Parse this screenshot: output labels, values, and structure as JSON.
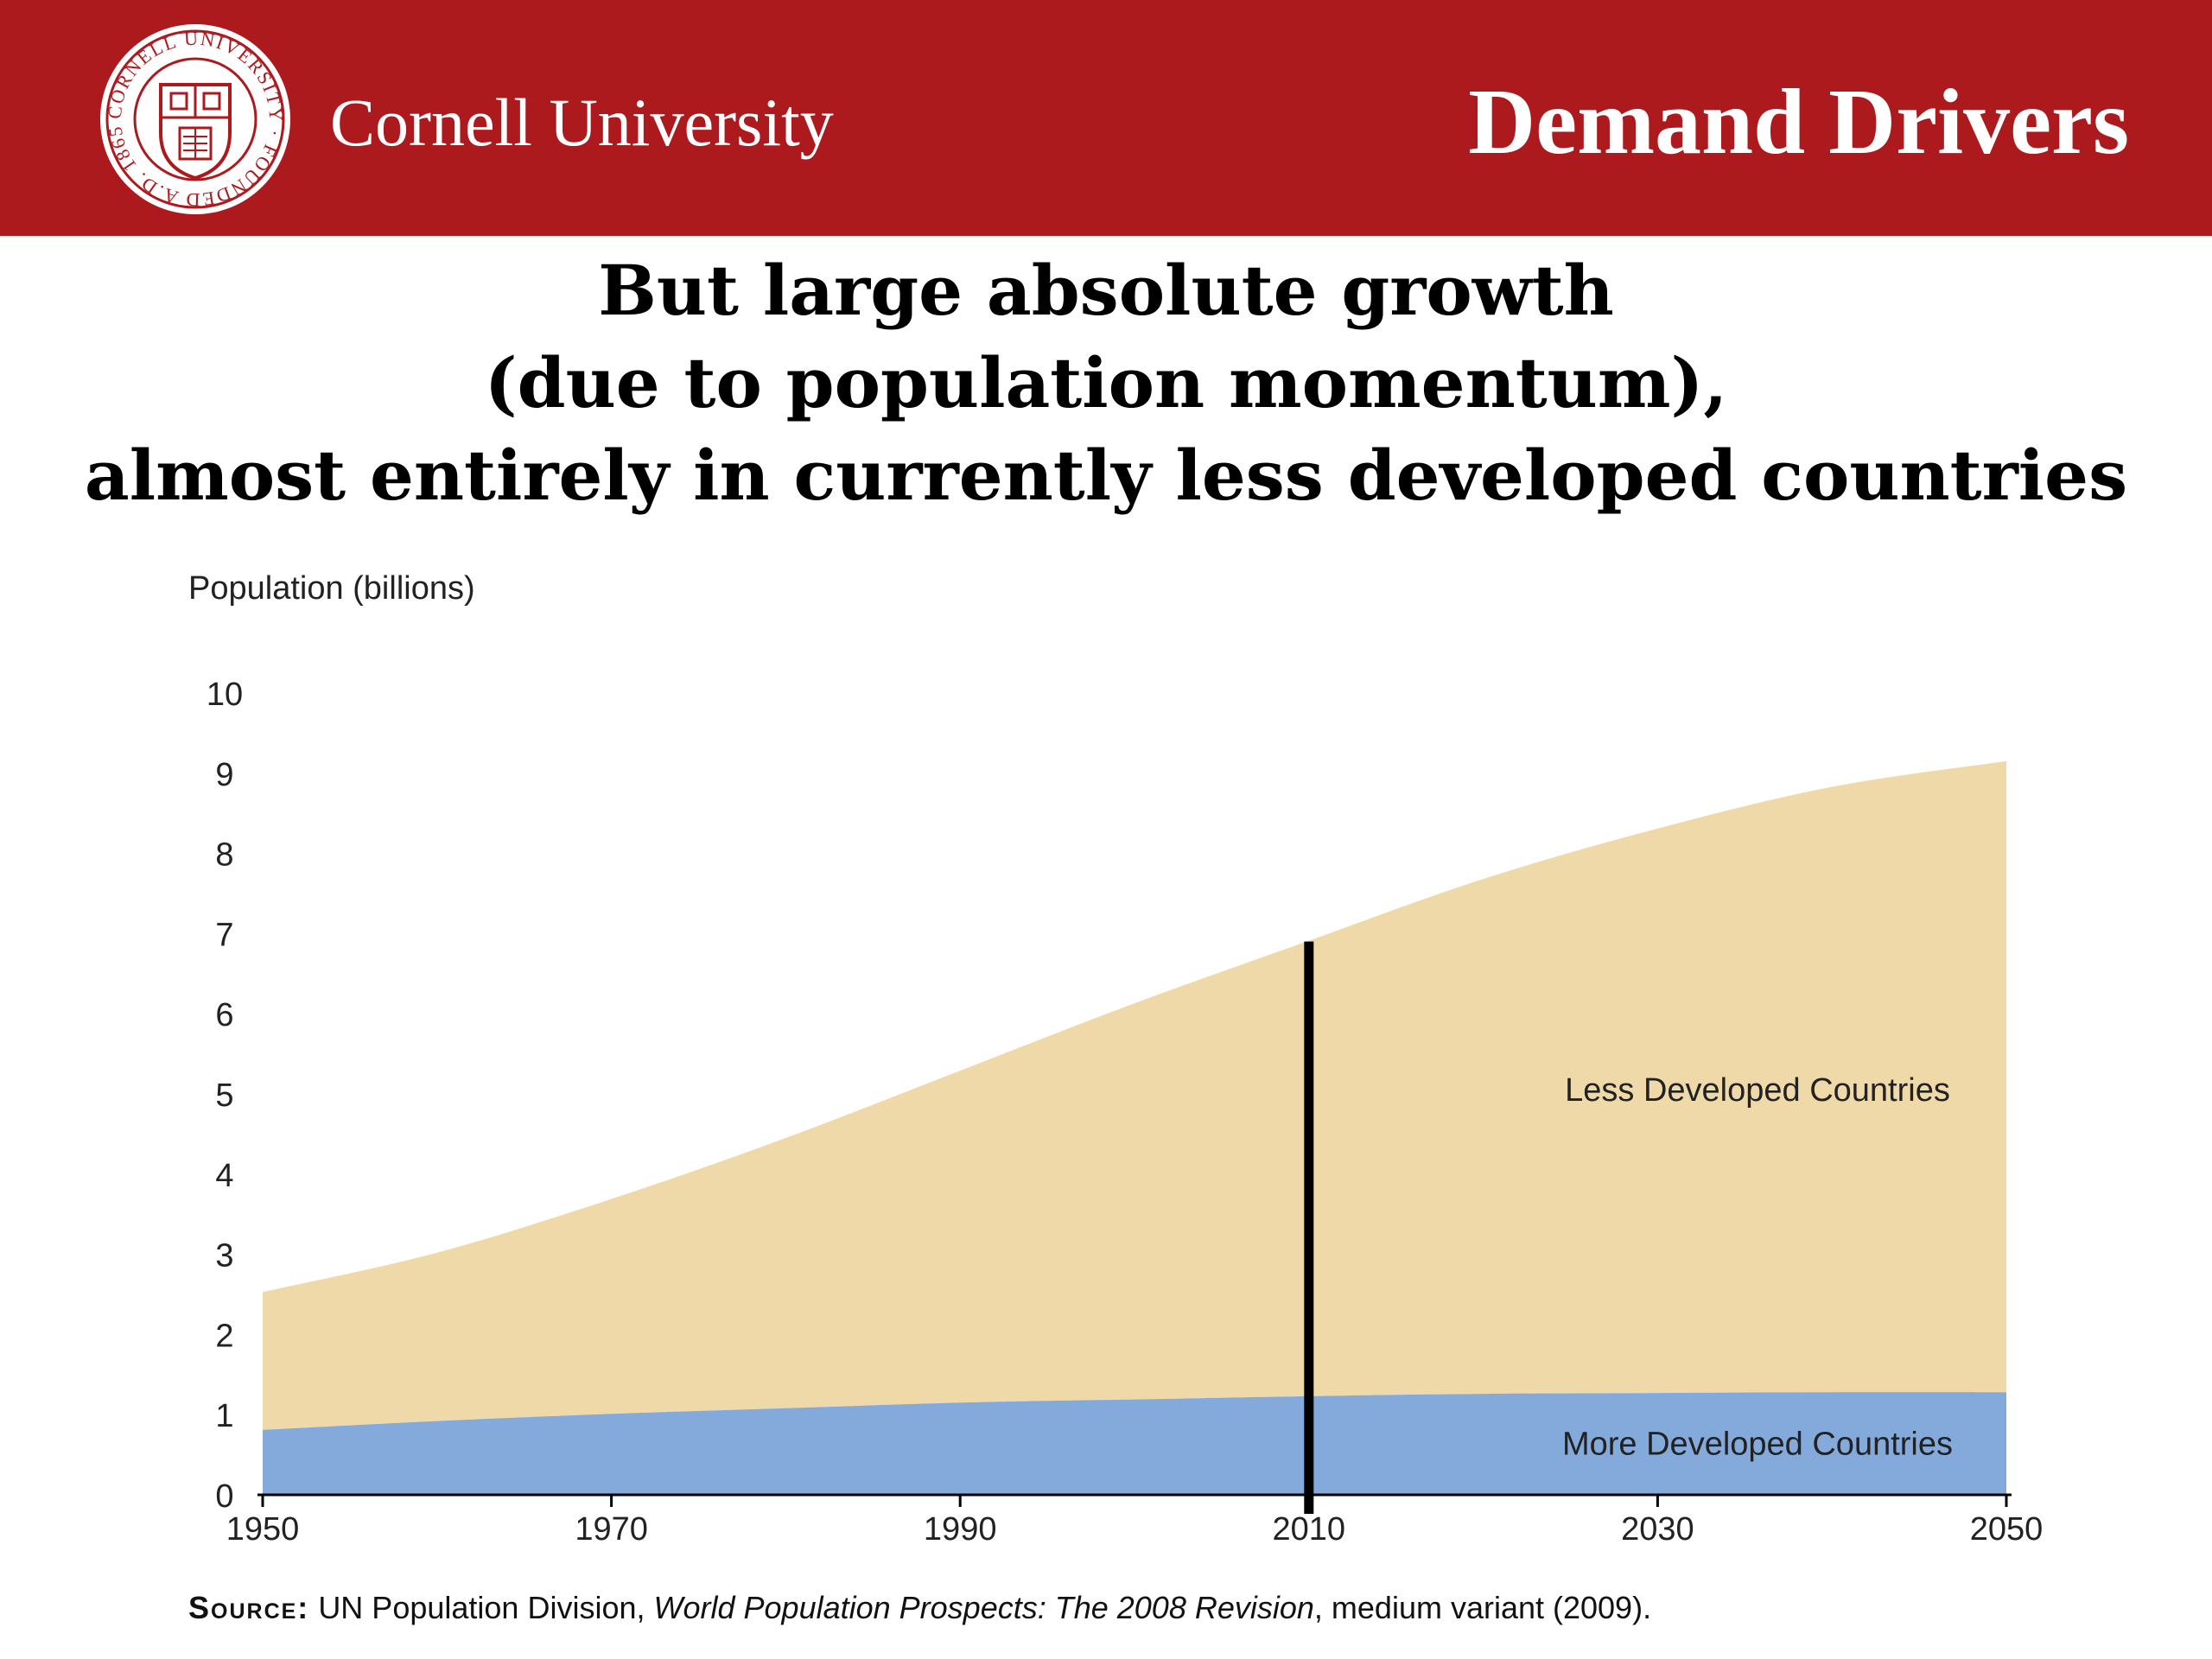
{
  "header": {
    "university": "Cornell University",
    "section_title": "Demand Drivers",
    "seal": {
      "ring_text": "CORNELL UNIVERSITY · FOUNDED A.D. 1865 ·",
      "color": "#ad1a1e"
    }
  },
  "heading": {
    "line1": "But large absolute growth",
    "line2": "(due to population momentum),",
    "line3": "almost entirely in currently less developed countries"
  },
  "colors": {
    "header_bg": "#ad1a1e",
    "less_developed": "#f0d9a8",
    "more_developed": "#84aadc"
  },
  "chart_data": {
    "type": "area",
    "stacked": true,
    "ylabel": "Population (billions)",
    "xlabel": "",
    "x": [
      1950,
      1960,
      1970,
      1980,
      1990,
      2000,
      2010,
      2020,
      2030,
      2040,
      2050
    ],
    "xticks": [
      1950,
      1970,
      1990,
      2010,
      2030,
      2050
    ],
    "yticks": [
      0,
      1,
      2,
      3,
      4,
      5,
      6,
      7,
      8,
      9,
      10
    ],
    "xlim": [
      1950,
      2050
    ],
    "ylim": [
      0,
      10
    ],
    "grid": false,
    "series": [
      {
        "name": "More Developed Countries",
        "values": [
          0.81,
          0.92,
          1.01,
          1.08,
          1.15,
          1.19,
          1.23,
          1.26,
          1.27,
          1.28,
          1.28
        ],
        "color": "#84aadc"
      },
      {
        "name": "Less Developed Countries",
        "values": [
          1.72,
          2.1,
          2.68,
          3.37,
          4.14,
          4.94,
          5.68,
          6.42,
          7.04,
          7.55,
          7.87
        ],
        "color": "#f0d9a8"
      }
    ],
    "annotations": [
      {
        "type": "vertical_line",
        "x": 2010,
        "y_from": 0,
        "y_to": 6.9,
        "color": "#000000"
      }
    ]
  },
  "source": {
    "label": "Source:",
    "text_before": "UN Population Division, ",
    "italic": "World Population Prospects: The 2008 Revision",
    "text_after": ", medium variant (2009)."
  }
}
